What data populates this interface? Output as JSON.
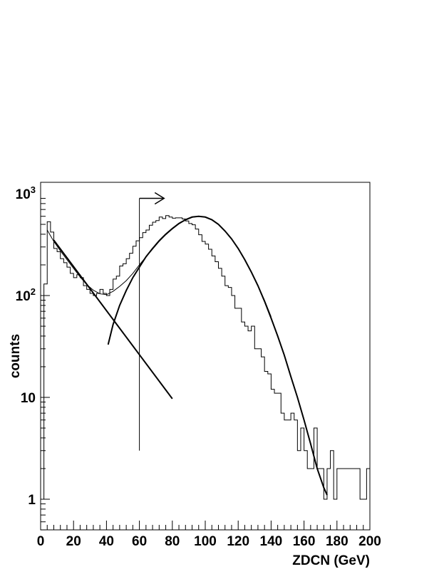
{
  "chart_data": {
    "type": "line",
    "xlabel": "ZDCN (GeV)",
    "ylabel": "counts",
    "xlim": [
      0,
      200
    ],
    "ylim": [
      0.5,
      1000
    ],
    "yscale": "log",
    "x_ticks": [
      0,
      20,
      40,
      60,
      80,
      100,
      120,
      140,
      160,
      180,
      200
    ],
    "x_tick_labels": [
      "0",
      "20",
      "40",
      "60",
      "80",
      "100",
      "120",
      "140",
      "160",
      "180",
      "200"
    ],
    "y_tick_labels": [
      {
        "value": 1000,
        "base": "10",
        "exp": "3"
      },
      {
        "value": 100,
        "base": "10",
        "exp": "2"
      },
      {
        "value": 10,
        "base": "10",
        "exp": ""
      },
      {
        "value": 1,
        "base": "1",
        "exp": ""
      }
    ],
    "histogram": {
      "bin_width": 2,
      "edges_start": 0,
      "counts": [
        1,
        130,
        530,
        420,
        290,
        270,
        230,
        210,
        190,
        165,
        150,
        160,
        150,
        125,
        115,
        105,
        100,
        105,
        115,
        105,
        100,
        115,
        145,
        155,
        195,
        205,
        230,
        260,
        305,
        345,
        370,
        415,
        440,
        490,
        525,
        545,
        590,
        570,
        610,
        590,
        575,
        580,
        580,
        565,
        540,
        510,
        495,
        450,
        395,
        340,
        320,
        285,
        245,
        215,
        185,
        155,
        125,
        120,
        100,
        75,
        75,
        55,
        50,
        45,
        50,
        30,
        30,
        25,
        18,
        17,
        12,
        11,
        11,
        7,
        6,
        6,
        7,
        6,
        3,
        5,
        3,
        2,
        2,
        5,
        2,
        2,
        1,
        2,
        3,
        1,
        2,
        2,
        2,
        2,
        2,
        2,
        2,
        1,
        1,
        2
      ]
    },
    "series": [
      {
        "type": "combined-fit",
        "x": [
          4,
          8,
          12,
          16,
          20,
          24,
          28,
          32,
          36,
          40,
          44,
          48,
          52,
          56,
          60,
          64,
          68,
          72,
          76,
          80,
          84,
          88,
          92,
          96,
          100,
          104,
          108,
          112,
          116,
          120,
          124,
          128,
          132,
          136,
          140
        ],
        "y": [
          440,
          340,
          275,
          225,
          185,
          152,
          128,
          113,
          104,
          102,
          110,
          123,
          140,
          165,
          200,
          240,
          285,
          340,
          395,
          450,
          505,
          550,
          585,
          600,
          590,
          555,
          500,
          430,
          360,
          290,
          225,
          170,
          125,
          90,
          62
        ]
      },
      {
        "type": "exponential",
        "x": [
          8,
          80
        ],
        "y": [
          350,
          9.7
        ]
      },
      {
        "type": "gaussian",
        "x": [
          41,
          44,
          48,
          52,
          56,
          60,
          64,
          68,
          72,
          76,
          80,
          84,
          88,
          92,
          96,
          100,
          104,
          108,
          112,
          116,
          120,
          124,
          128,
          132,
          136,
          140,
          144,
          148,
          152,
          156,
          160,
          164,
          168,
          172,
          174
        ],
        "y": [
          33,
          52,
          80,
          112,
          150,
          190,
          240,
          290,
          345,
          400,
          455,
          510,
          555,
          590,
          600,
          590,
          555,
          500,
          430,
          360,
          290,
          225,
          170,
          125,
          88,
          60,
          40,
          26,
          16,
          10,
          6,
          3.5,
          2,
          1.3,
          1.1
        ]
      }
    ],
    "cut": {
      "x": 60,
      "y_from": 3,
      "y_to": 900,
      "arrow_x_to": 75
    }
  }
}
